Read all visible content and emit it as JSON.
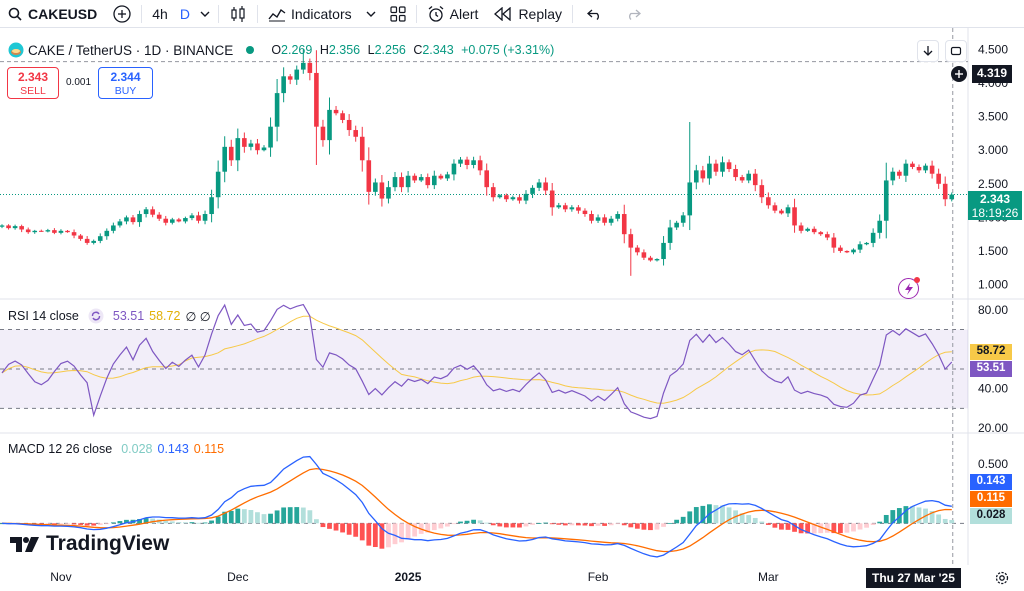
{
  "toolbar": {
    "symbol": "CAKEUSD",
    "interval": "4h",
    "interval_alt": "D",
    "indicators_label": "Indicators",
    "alert_label": "Alert",
    "replay_label": "Replay"
  },
  "legend": {
    "title": "CAKE / TetherUS · 1D · BINANCE",
    "open_label": "O",
    "open": "2.269",
    "high_label": "H",
    "high": "2.356",
    "low_label": "L",
    "low": "2.256",
    "close_label": "C",
    "close": "2.343",
    "change": "+0.075 (+3.31%)"
  },
  "trade": {
    "sell_price": "2.343",
    "sell_label": "SELL",
    "buy_price": "2.344",
    "buy_label": "BUY",
    "spread": "0.001"
  },
  "rsi_legend": {
    "name": "RSI 14 close",
    "rsi": "53.51",
    "ma": "58.72",
    "extra": "∅ ∅"
  },
  "macd_legend": {
    "name": "MACD 12 26 close",
    "hist": "0.028",
    "macd": "0.143",
    "signal": "0.115"
  },
  "tags": {
    "crosshair_price": "4.319",
    "last_price": "2.343",
    "countdown": "18:19:26",
    "rsi_ma": "58.72",
    "rsi": "53.51",
    "macd": "0.143",
    "signal": "0.115",
    "hist": "0.028",
    "crosshair_date": "Thu 27 Mar '25"
  },
  "brand": "TradingView",
  "colors": {
    "up": "#089981",
    "down": "#f23645",
    "rsi": "#7e57c2",
    "rsi_ma": "#f7c948",
    "macd": "#2962ff",
    "signal": "#ff6d00",
    "hist_up": "#26a69a",
    "hist_down": "#ff5252",
    "accent": "#2962ff"
  },
  "chart_data": [
    {
      "type": "candlestick",
      "title": "CAKE / TetherUS · 1D · BINANCE",
      "y_ticks": [
        1.0,
        1.5,
        2.0,
        2.5,
        3.0,
        3.5,
        4.0,
        4.5
      ],
      "y_tick_labels": [
        "1.000",
        "1.500",
        "2.000",
        "2.500",
        "3.000",
        "3.500",
        "4.000",
        "4.500"
      ],
      "x_labels": [
        "Nov",
        "Dec",
        "2025",
        "Feb",
        "Mar"
      ],
      "ylim": [
        0.8,
        4.7
      ],
      "grid": false,
      "closes": [
        1.88,
        1.84,
        1.87,
        1.82,
        1.78,
        1.8,
        1.79,
        1.81,
        1.77,
        1.8,
        1.78,
        1.73,
        1.68,
        1.62,
        1.65,
        1.72,
        1.8,
        1.88,
        1.94,
        2.0,
        1.93,
        2.05,
        2.12,
        2.04,
        1.98,
        1.92,
        1.97,
        1.94,
        1.99,
        2.03,
        1.95,
        2.05,
        2.3,
        2.68,
        3.05,
        2.85,
        3.18,
        3.05,
        3.1,
        3.0,
        3.04,
        3.35,
        3.85,
        4.1,
        4.05,
        4.2,
        4.3,
        4.15,
        3.35,
        3.15,
        3.6,
        3.55,
        3.45,
        3.3,
        3.2,
        2.85,
        2.38,
        2.52,
        2.28,
        2.45,
        2.6,
        2.45,
        2.62,
        2.55,
        2.6,
        2.48,
        2.62,
        2.58,
        2.64,
        2.8,
        2.86,
        2.78,
        2.85,
        2.7,
        2.45,
        2.3,
        2.33,
        2.27,
        2.3,
        2.25,
        2.35,
        2.44,
        2.52,
        2.4,
        2.15,
        2.18,
        2.12,
        2.15,
        2.1,
        2.05,
        1.95,
        2.0,
        1.92,
        1.98,
        2.05,
        1.75,
        1.55,
        1.48,
        1.4,
        1.36,
        1.38,
        1.62,
        1.85,
        1.92,
        2.03,
        2.52,
        2.7,
        2.58,
        2.8,
        2.68,
        2.82,
        2.72,
        2.6,
        2.55,
        2.65,
        2.48,
        2.3,
        2.18,
        2.1,
        2.06,
        2.15,
        1.88,
        1.8,
        1.83,
        1.78,
        1.75,
        1.7,
        1.55,
        1.5,
        1.48,
        1.52,
        1.6,
        1.62,
        1.77,
        1.95,
        2.55,
        2.68,
        2.62,
        2.8,
        2.75,
        2.7,
        2.77,
        2.65,
        2.5,
        2.27,
        2.34
      ]
    },
    {
      "type": "line",
      "name": "RSI 14 close",
      "y_ticks": [
        20,
        40,
        80
      ],
      "y_tick_labels": [
        "20.00",
        "40.00",
        "80.00"
      ],
      "ylim": [
        18,
        85
      ],
      "bands": [
        30,
        50,
        70
      ],
      "last_rsi": 53.51,
      "last_ma": 58.72
    },
    {
      "type": "line",
      "name": "MACD 12 26 close",
      "y_ticks": [
        0.5
      ],
      "y_tick_labels": [
        "0.500"
      ],
      "ylim": [
        -0.35,
        0.75
      ],
      "last_macd": 0.143,
      "last_signal": 0.115,
      "last_hist": 0.028
    }
  ]
}
